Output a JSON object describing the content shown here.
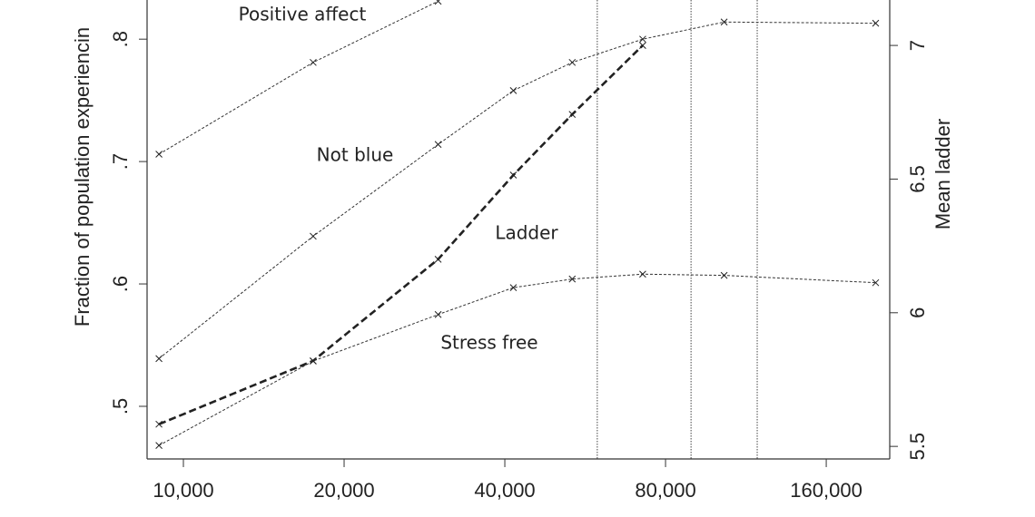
{
  "chart_data": {
    "type": "line",
    "ylabel": "Fraction of population experiencin",
    "y2label": "Mean ladder",
    "x": [
      9000,
      17500,
      30000,
      41500,
      53500,
      72500,
      103000,
      198000
    ],
    "xscale": "log",
    "xlim": [
      8550,
      210400
    ],
    "xticks": [
      {
        "value": 10000,
        "label": "10,000"
      },
      {
        "value": 20000,
        "label": "20,000"
      },
      {
        "value": 40000,
        "label": "40,000"
      },
      {
        "value": 80000,
        "label": "80,000"
      },
      {
        "value": 160000,
        "label": "160,000"
      }
    ],
    "ylim": [
      0.457,
      0.832
    ],
    "yticks": [
      {
        "value": 0.5,
        "label": ".5"
      },
      {
        "value": 0.6,
        "label": ".6"
      },
      {
        "value": 0.7,
        "label": ".7"
      },
      {
        "value": 0.8,
        "label": ".8"
      }
    ],
    "y2lim": [
      5.453,
      7.17
    ],
    "y2ticks": [
      5.5,
      6,
      6.5,
      7
    ],
    "vlines": [
      59600,
      89300,
      118800
    ],
    "series": [
      {
        "name": "Positive affect",
        "color": "#333333",
        "values": [
          0.706,
          0.781,
          0.831,
          null,
          null,
          null,
          null,
          null
        ]
      },
      {
        "name": "Not blue",
        "color": "#333333",
        "values": [
          0.539,
          0.639,
          0.714,
          0.758,
          0.781,
          0.8,
          0.814,
          0.813
        ]
      },
      {
        "name": "Ladder",
        "color": "#222222",
        "axis": "y2",
        "values": [
          5.583,
          5.82,
          6.2,
          6.515,
          6.742,
          7.0,
          null,
          null
        ]
      },
      {
        "name": "Stress free",
        "color": "#333333",
        "values": [
          0.468,
          0.537,
          0.575,
          0.597,
          0.604,
          0.608,
          0.607,
          0.601
        ]
      }
    ]
  }
}
